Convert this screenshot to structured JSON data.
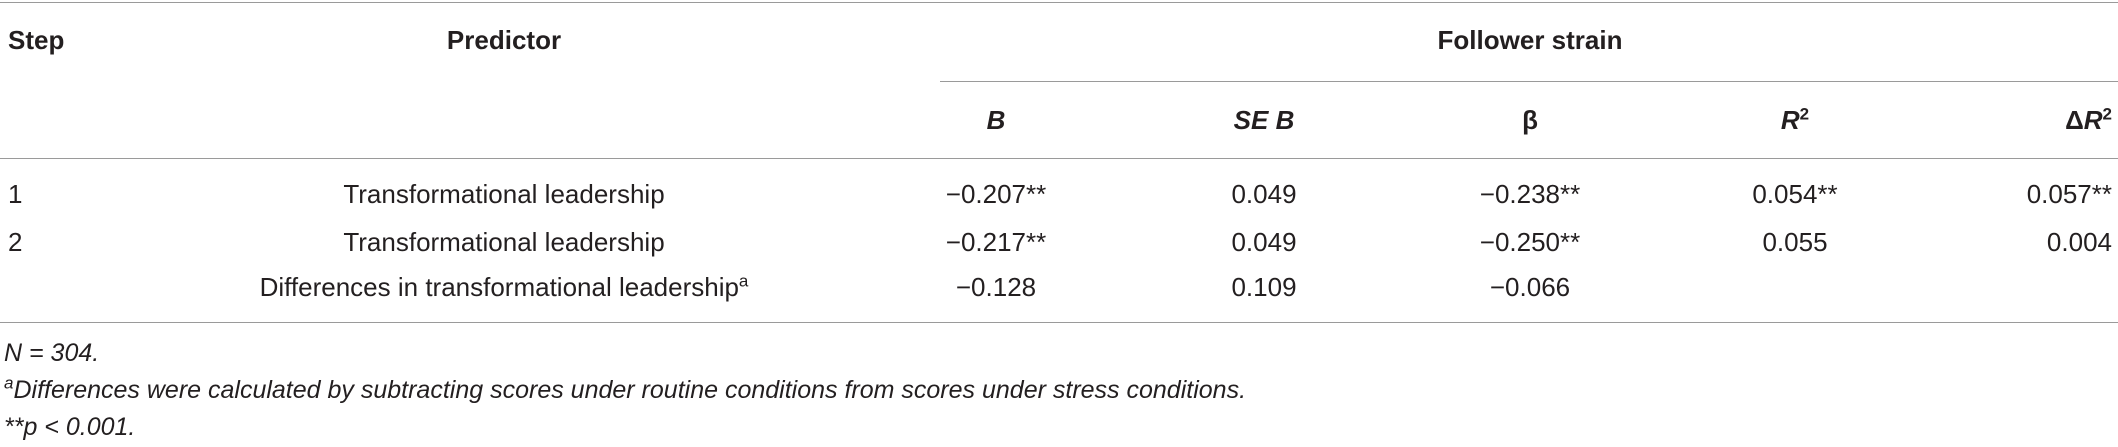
{
  "table": {
    "headers": {
      "step": "Step",
      "predictor": "Predictor",
      "group": "Follower strain",
      "b": "B",
      "se_b": "SE B",
      "beta": "β",
      "r2_base": "R",
      "r2_sup": "2",
      "dr2_delta": "Δ",
      "dr2_base": "R",
      "dr2_sup": "2"
    },
    "rows": [
      {
        "step": "1",
        "predictor": "Transformational leadership",
        "predictor_sup": "",
        "b": "−0.207**",
        "se_b": "0.049",
        "beta": "−0.238**",
        "r2": "0.054**",
        "dr2": "0.057**"
      },
      {
        "step": "2",
        "predictor": "Transformational leadership",
        "predictor_sup": "",
        "b": "−0.217**",
        "se_b": "0.049",
        "beta": "−0.250**",
        "r2": "0.055",
        "dr2": "0.004"
      },
      {
        "step": "",
        "predictor": "Differences in transformational leadership",
        "predictor_sup": "a",
        "b": "−0.128",
        "se_b": "0.109",
        "beta": "−0.066",
        "r2": "",
        "dr2": ""
      }
    ]
  },
  "notes": {
    "n": "N = 304.",
    "a_marker": "a",
    "a_text": "Differences were calculated by subtracting scores under routine conditions from scores under stress conditions.",
    "p": "**p < 0.001."
  }
}
